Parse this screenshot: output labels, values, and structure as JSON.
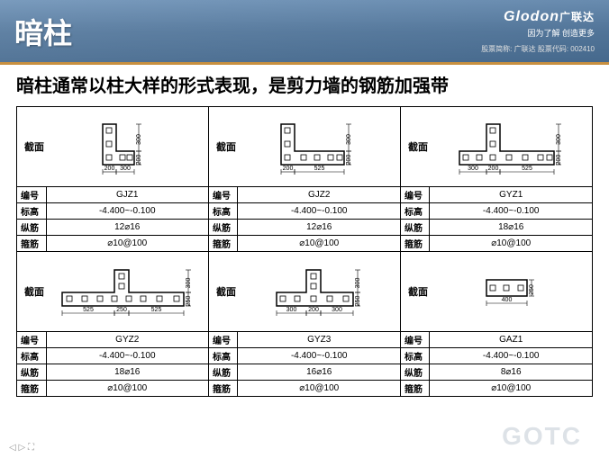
{
  "header": {
    "title": "暗柱",
    "logo_main": "Glodon",
    "logo_cn": "广联达",
    "logo_sub": "因为了解 创造更多",
    "logo_info": "股票简称: 广联达  股票代码: 002410"
  },
  "subtitle": "暗柱通常以柱大样的形式表现，是剪力墙的钢筋加强带",
  "section_label": "截面",
  "rows_labels": [
    "编号",
    "标高",
    "纵筋",
    "箍筋"
  ],
  "columns": [
    {
      "id": "GJZ1",
      "elev": "-4.400~-0.100",
      "rebar": "12⌀16",
      "stirrup": "⌀10@100",
      "shape": "L1",
      "dims": {
        "h1": "200",
        "h2": "300",
        "w1": "200",
        "w2": "300"
      }
    },
    {
      "id": "GJZ2",
      "elev": "-4.400~-0.100",
      "rebar": "12⌀16",
      "stirrup": "⌀10@100",
      "shape": "L2",
      "dims": {
        "h1": "200",
        "h2": "300",
        "w1": "200",
        "w2": "525"
      }
    },
    {
      "id": "GYZ1",
      "elev": "-4.400~-0.100",
      "rebar": "18⌀16",
      "stirrup": "⌀10@100",
      "shape": "T1",
      "dims": {
        "h1": "200",
        "h2": "300",
        "w1": "300",
        "w2": "200",
        "w3": "525"
      }
    },
    {
      "id": "GYZ2",
      "elev": "-4.400~-0.100",
      "rebar": "18⌀16",
      "stirrup": "⌀10@100",
      "shape": "T2",
      "dims": {
        "h1": "250",
        "h2": "300",
        "w1": "525",
        "w2": "250",
        "w3": "525"
      }
    },
    {
      "id": "GYZ3",
      "elev": "-4.400~-0.100",
      "rebar": "16⌀16",
      "stirrup": "⌀10@100",
      "shape": "T3",
      "dims": {
        "h1": "250",
        "h2": "300",
        "w1": "300",
        "w2": "200",
        "w3": "300"
      }
    },
    {
      "id": "GAZ1",
      "elev": "-4.400~-0.100",
      "rebar": "8⌀16",
      "stirrup": "⌀10@100",
      "shape": "R",
      "dims": {
        "h1": "250",
        "w1": "400"
      }
    }
  ],
  "watermark": "GOTC"
}
